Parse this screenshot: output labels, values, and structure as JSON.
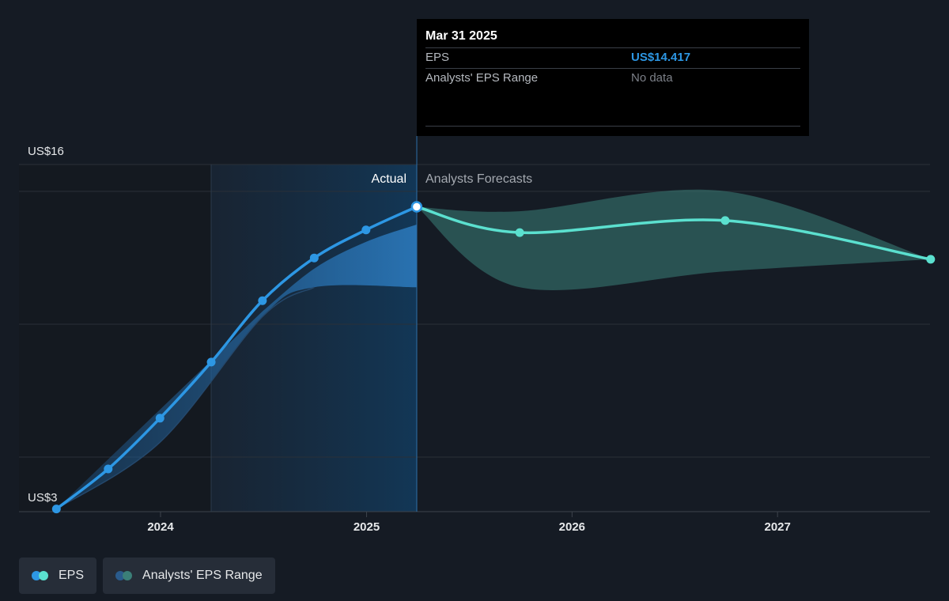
{
  "chart_data": {
    "type": "line",
    "y_axis": {
      "top_label": "US$16",
      "bottom_label": "US$3",
      "min": 3,
      "max": 16
    },
    "x_ticks": [
      "2024",
      "2025",
      "2026",
      "2027"
    ],
    "sections": {
      "actual": "Actual",
      "forecast": "Analysts Forecasts"
    },
    "series": [
      {
        "name": "EPS",
        "color": "#2d97e4",
        "points": [
          {
            "x": "2023-06-30",
            "y": 3.1
          },
          {
            "x": "2023-09-30",
            "y": 4.6
          },
          {
            "x": "2023-12-31",
            "y": 6.5
          },
          {
            "x": "2024-03-31",
            "y": 8.6
          },
          {
            "x": "2024-06-30",
            "y": 10.9
          },
          {
            "x": "2024-09-30",
            "y": 12.5
          },
          {
            "x": "2024-12-31",
            "y": 13.55
          },
          {
            "x": "2025-03-31",
            "y": 14.417
          }
        ]
      },
      {
        "name": "EPS",
        "color": "#5be0cf",
        "points": [
          {
            "x": "2025-03-31",
            "y": 14.417
          },
          {
            "x": "2025-09-30",
            "y": 13.45
          },
          {
            "x": "2026-09-30",
            "y": 13.9
          },
          {
            "x": "2027-09-30",
            "y": 12.45
          }
        ]
      }
    ],
    "actual_range_band": {
      "color": "#2d7cc0",
      "lower": [
        {
          "x": "2023-06-30",
          "y": 3.1
        },
        {
          "x": "2023-12-31",
          "y": 5.6
        },
        {
          "x": "2024-06-30",
          "y": 10.3
        },
        {
          "x": "2024-09-30",
          "y": 11.4
        },
        {
          "x": "2025-03-31",
          "y": 11.4
        }
      ],
      "upper": [
        {
          "x": "2024-06-30",
          "y": 10.5
        },
        {
          "x": "2024-09-30",
          "y": 12.1
        },
        {
          "x": "2024-12-31",
          "y": 13.1
        },
        {
          "x": "2025-03-31",
          "y": 13.75
        }
      ]
    },
    "forecast_range": {
      "name": "Analysts' EPS Range",
      "color": "#3b7f78",
      "upper": [
        {
          "x": "2025-03-31",
          "y": 14.417
        },
        {
          "x": "2025-09-30",
          "y": 14.25
        },
        {
          "x": "2026-09-30",
          "y": 15.0
        },
        {
          "x": "2027-09-30",
          "y": 12.45
        }
      ],
      "lower": [
        {
          "x": "2025-03-31",
          "y": 14.417
        },
        {
          "x": "2025-09-30",
          "y": 11.4
        },
        {
          "x": "2026-09-30",
          "y": 12.0
        },
        {
          "x": "2027-09-30",
          "y": 12.45
        }
      ]
    },
    "grid": true
  },
  "tooltip": {
    "date": "Mar 31 2025",
    "rows": [
      {
        "label": "EPS",
        "value": "US$14.417"
      },
      {
        "label": "Analysts' EPS Range",
        "value": "No data"
      }
    ]
  },
  "legend": [
    {
      "label": "EPS",
      "colors": [
        "#2d97e4",
        "#5be0cf"
      ]
    },
    {
      "label": "Analysts' EPS Range",
      "colors": [
        "#2a5b8c",
        "#3b7f78"
      ]
    }
  ]
}
